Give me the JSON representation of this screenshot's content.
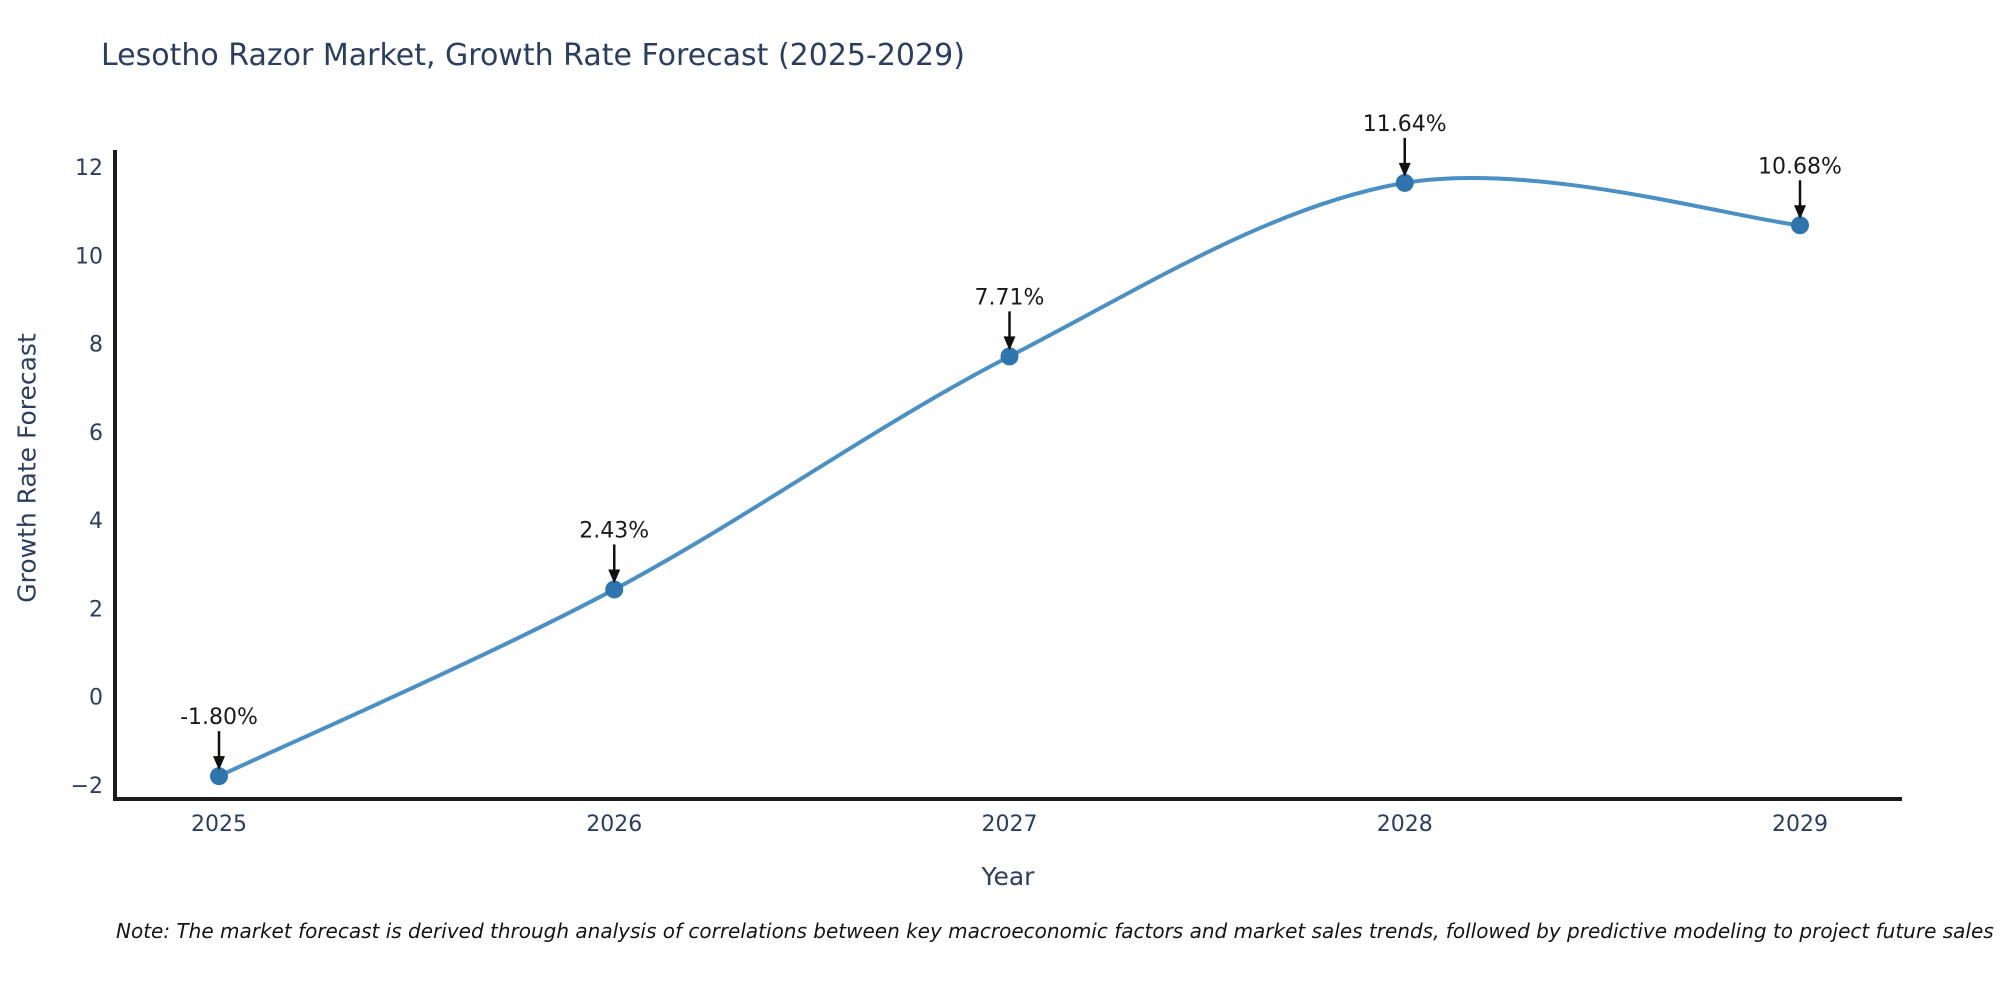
{
  "title": "Lesotho Razor Market, Growth Rate Forecast (2025-2029)",
  "note": "Note: The market forecast is derived through analysis of correlations between key macroeconomic factors and market sales trends, followed by predictive modeling to project future sales",
  "chart_data": {
    "type": "line",
    "title": "Lesotho Razor Market, Growth Rate Forecast (2025-2029)",
    "xlabel": "Year",
    "ylabel": "Growth Rate Forecast",
    "x": [
      "2025",
      "2026",
      "2027",
      "2028",
      "2029"
    ],
    "values": [
      -1.8,
      2.43,
      7.71,
      11.64,
      10.68
    ],
    "point_labels": [
      "-1.80%",
      "2.43%",
      "7.71%",
      "11.64%",
      "10.68%"
    ],
    "ylim": [
      -2,
      12
    ],
    "yticks": [
      -2,
      0,
      2,
      4,
      6,
      8,
      10,
      12
    ],
    "grid": false,
    "legend": "none",
    "smooth": true,
    "colors": {
      "line": "#4a90c4",
      "marker": "#2e75b0",
      "axis": "#1c1c1c",
      "tick_text": "#2a3f5f",
      "annotation_text": "#1a1a1a",
      "arrow": "#111111"
    }
  }
}
